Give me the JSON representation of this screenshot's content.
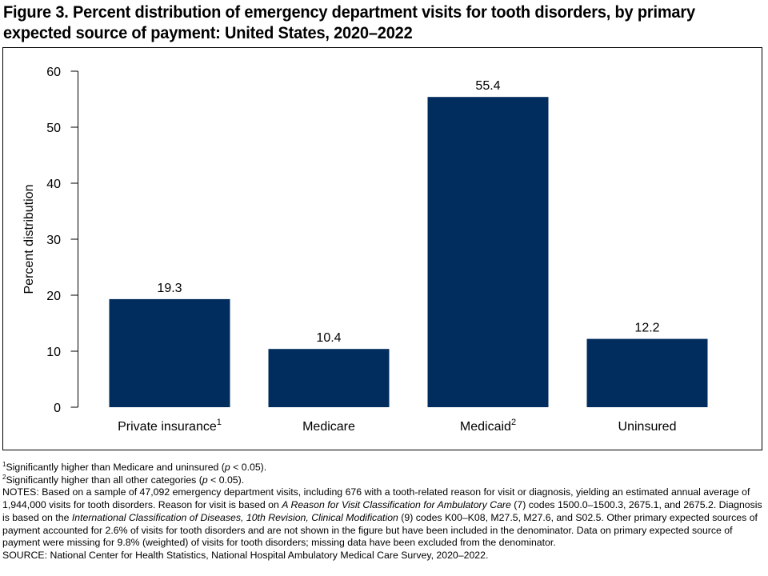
{
  "title": "Figure 3. Percent distribution of emergency department visits for tooth disorders, by primary expected source of payment: United States, 2020–2022",
  "chart_data": {
    "type": "bar",
    "title": "Figure 3. Percent distribution of emergency department visits for tooth disorders, by primary expected source of payment: United States, 2020–2022",
    "categories": [
      "Private insurance",
      "Medicare",
      "Medicaid",
      "Uninsured"
    ],
    "category_superscripts": [
      "1",
      "",
      "2",
      ""
    ],
    "values": [
      19.3,
      10.4,
      55.4,
      12.2
    ],
    "value_labels": [
      "19.3",
      "10.4",
      "55.4",
      "12.2"
    ],
    "xlabel": "",
    "ylabel": "Percent distribution",
    "ylim": [
      0,
      60
    ],
    "yticks": [
      0,
      10,
      20,
      30,
      40,
      50,
      60
    ],
    "ytick_labels": [
      "0",
      "10",
      "20",
      "30",
      "40",
      "50",
      "60"
    ],
    "grid": false,
    "bar_color": "#002D5E"
  },
  "notes": {
    "fn1_mark": "1",
    "fn1_a": "Significantly higher than Medicare and uninsured (",
    "fn1_p": "p",
    "fn1_b": " < 0.05).",
    "fn2_mark": "2",
    "fn2_a": "Significantly higher than all other categories (",
    "fn2_p": "p",
    "fn2_b": " < 0.05).",
    "n_a": "NOTES: Based on a sample of 47,092 emergency department visits, including 676 with a tooth-related reason for visit or diagnosis, yielding an estimated annual average of 1,944,000 visits for tooth disorders. Reason for visit is based on ",
    "n_i1": "A Reason for Visit Classification for Ambulatory Care",
    "n_b": " (7) codes 1500.0–1500.3, 2675.1, and 2675.2. Diagnosis is based on the ",
    "n_i2": "International Classification of Diseases, 10th Revision, Clinical Modification",
    "n_c": " (9) codes K00–K08, M27.5, M27.6, and S02.5. Other primary expected sources of payment accounted for 2.6% of visits for tooth disorders and are not shown in the figure but have been included in the denominator. Data on primary expected source of payment were missing for 9.8% (weighted) of visits for tooth disorders; missing data have been excluded from the denominator.",
    "source": "SOURCE: National Center for Health Statistics, National Hospital Ambulatory Medical Care Survey, 2020–2022."
  }
}
